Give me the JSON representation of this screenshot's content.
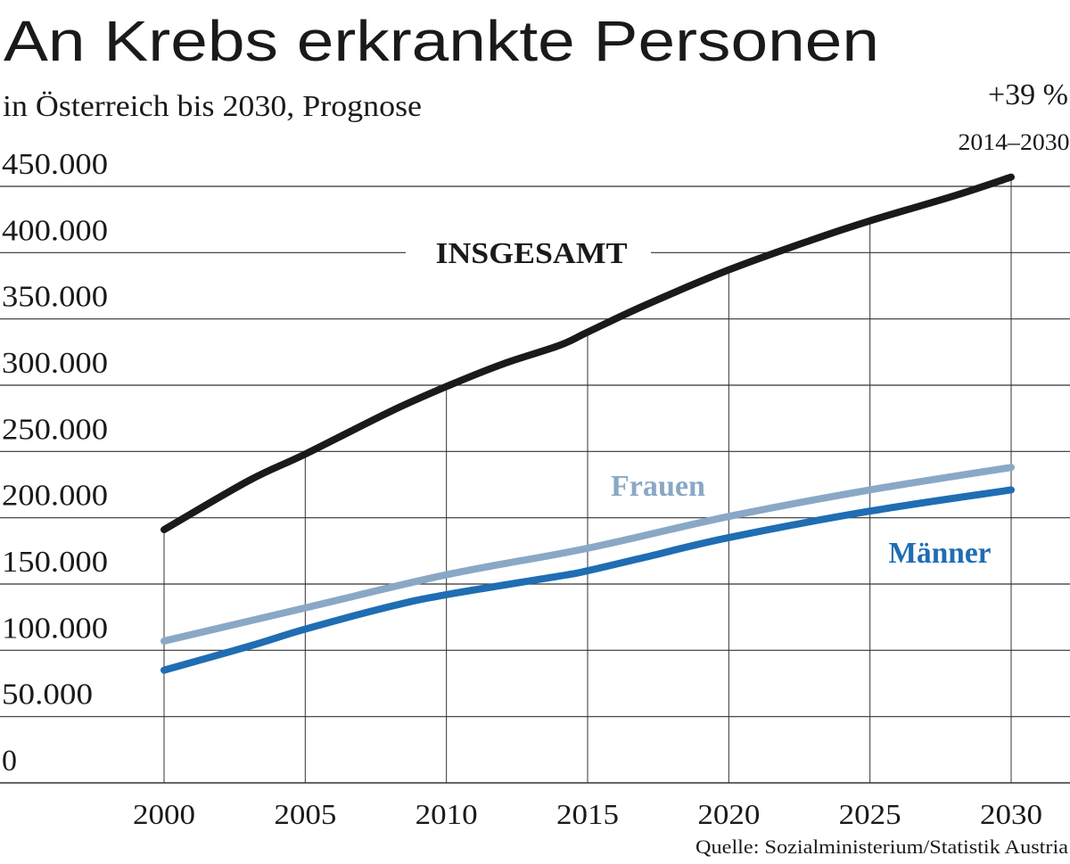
{
  "chart_data": {
    "type": "line",
    "title": "An Krebs erkrankte Personen",
    "subtitle": "in Österreich bis 2030, Prognose",
    "annotation": {
      "value": "+39 %",
      "period": "2014–2030"
    },
    "source": "Quelle: Sozialministerium/Statistik Austria",
    "xlabel": "",
    "ylabel": "",
    "xlim": [
      2000,
      2030
    ],
    "ylim": [
      0,
      450000
    ],
    "x_ticks": [
      2000,
      2005,
      2010,
      2015,
      2020,
      2025,
      2030
    ],
    "y_ticks": [
      0,
      50000,
      100000,
      150000,
      200000,
      250000,
      300000,
      350000,
      400000,
      450000
    ],
    "y_tick_labels": [
      "0",
      "50.000",
      "100.000",
      "150.000",
      "200.000",
      "250.000",
      "300.000",
      "350.000",
      "400.000",
      "450.000"
    ],
    "grid": true,
    "legend": "inline labels",
    "series": [
      {
        "name": "INSGESAMT",
        "color": "#1a1a1a",
        "points": [
          [
            2000,
            191000
          ],
          [
            2003,
            228000
          ],
          [
            2005,
            248000
          ],
          [
            2008,
            280000
          ],
          [
            2010,
            299000
          ],
          [
            2012,
            316000
          ],
          [
            2014,
            330000
          ],
          [
            2015,
            340000
          ],
          [
            2017,
            360000
          ],
          [
            2020,
            387000
          ],
          [
            2023,
            410000
          ],
          [
            2025,
            424000
          ],
          [
            2028,
            443000
          ],
          [
            2030,
            457000
          ]
        ]
      },
      {
        "name": "Frauen",
        "color": "#8aa8c6",
        "points": [
          [
            2000,
            107000
          ],
          [
            2005,
            132000
          ],
          [
            2010,
            157000
          ],
          [
            2015,
            177000
          ],
          [
            2020,
            201000
          ],
          [
            2025,
            221000
          ],
          [
            2030,
            238000
          ]
        ]
      },
      {
        "name": "Männer",
        "color": "#1f6db3",
        "points": [
          [
            2000,
            85000
          ],
          [
            2003,
            103000
          ],
          [
            2005,
            116000
          ],
          [
            2008,
            133000
          ],
          [
            2010,
            142000
          ],
          [
            2014,
            156000
          ],
          [
            2015,
            160000
          ],
          [
            2017,
            170000
          ],
          [
            2020,
            185000
          ],
          [
            2025,
            205000
          ],
          [
            2030,
            221000
          ]
        ]
      }
    ]
  }
}
